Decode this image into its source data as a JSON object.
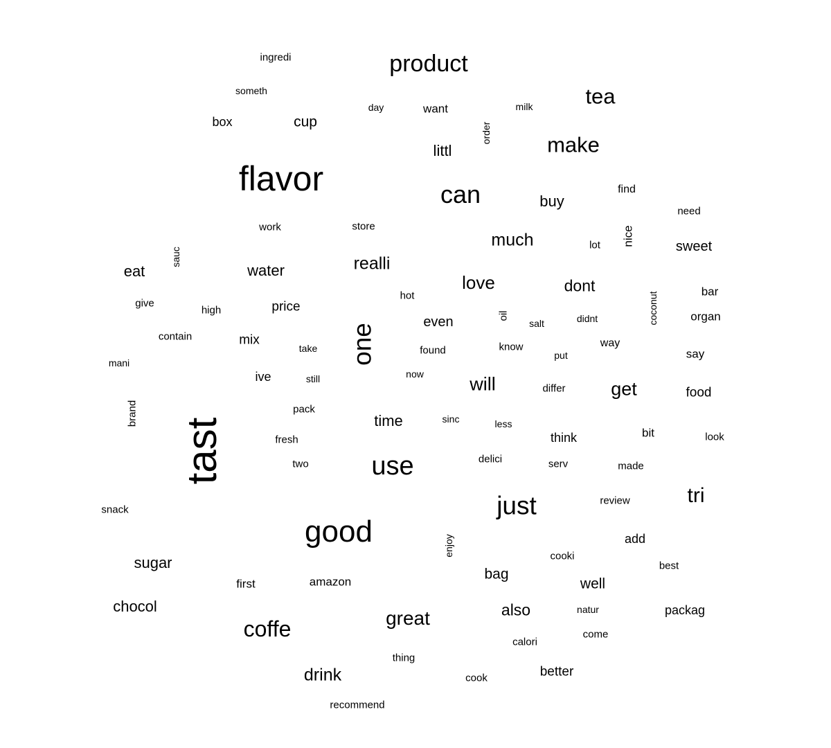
{
  "words": [
    "tast",
    "flavor",
    "good",
    "use",
    "product",
    "can",
    "just",
    "one",
    "coffe",
    "make",
    "tea",
    "great",
    "tri",
    "realli",
    "love",
    "much",
    "will",
    "get",
    "drink",
    "time",
    "water",
    "dont",
    "sugar",
    "also",
    "buy",
    "chocol",
    "even",
    "eat",
    "littl",
    "bag",
    "well",
    "cup",
    "sweet",
    "better",
    "price",
    "mix",
    "want",
    "think",
    "food",
    "packag",
    "box",
    "ive",
    "organ",
    "add",
    "amazon",
    "first",
    "bar",
    "find",
    "nice",
    "bit",
    "found",
    "say",
    "way",
    "recommend",
    "brand",
    "know",
    "enjoy",
    "differ",
    "coconut",
    "order",
    "look",
    "oil",
    "delici",
    "made",
    "salt",
    "review",
    "cooki",
    "natur",
    "come",
    "calori",
    "cook",
    "best",
    "thing",
    "snack",
    "fresh",
    "pack",
    "two",
    "serv",
    "store",
    "work",
    "contain",
    "high",
    "give",
    "sinc",
    "less",
    "now",
    "still",
    "take",
    "put",
    "didnt",
    "lot",
    "need",
    "hot",
    "sauc",
    "mani",
    "day",
    "milk",
    "someth",
    "ingredi"
  ]
}
